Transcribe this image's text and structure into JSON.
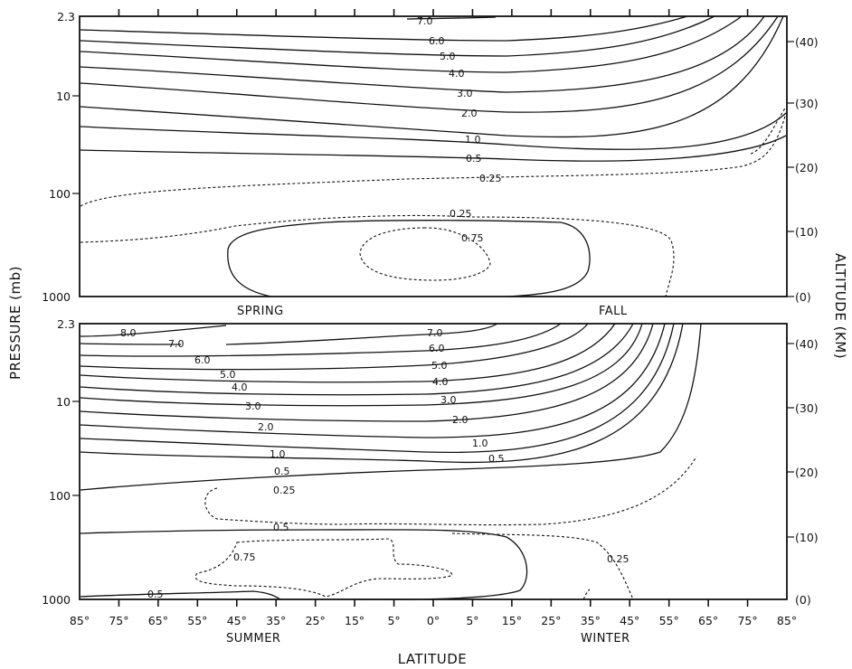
{
  "chart_data": [
    {
      "type": "contour",
      "panel": "upper",
      "season_labels": {
        "left": "SPRING",
        "right": "FALL"
      },
      "pressure_ticks": [
        "2.3",
        "10",
        "100",
        "1000"
      ],
      "altitude_ticks": [
        "(40)",
        "(30)",
        "(20)",
        "(10)",
        "(0)"
      ],
      "contour_levels": [
        {
          "value": "7.0",
          "style": "solid"
        },
        {
          "value": "6.0",
          "style": "solid"
        },
        {
          "value": "5.0",
          "style": "solid"
        },
        {
          "value": "4.0",
          "style": "solid"
        },
        {
          "value": "3.0",
          "style": "solid"
        },
        {
          "value": "2.0",
          "style": "solid"
        },
        {
          "value": "1.0",
          "style": "solid"
        },
        {
          "value": "0.5",
          "style": "solid"
        },
        {
          "value": "0.25",
          "style": "dashed"
        },
        {
          "value": "0.25",
          "style": "dashed"
        },
        {
          "value": "0.75",
          "style": "dashed"
        }
      ]
    },
    {
      "type": "contour",
      "panel": "lower",
      "season_labels": {
        "left": "SUMMER",
        "right": "WINTER"
      },
      "pressure_ticks": [
        "2.3",
        "10",
        "100",
        "1000"
      ],
      "altitude_ticks": [
        "(40)",
        "(30)",
        "(20)",
        "(10)",
        "(0)"
      ],
      "latitude_ticks": [
        "85°",
        "75°",
        "65°",
        "55°",
        "45°",
        "35°",
        "25°",
        "15°",
        "5°",
        "0°",
        "5°",
        "15°",
        "25°",
        "35°",
        "45°",
        "55°",
        "65°",
        "75°",
        "85°"
      ],
      "contour_levels": [
        {
          "value": "8.0",
          "style": "solid"
        },
        {
          "value": "7.0",
          "style": "solid"
        },
        {
          "value": "6.0",
          "style": "solid"
        },
        {
          "value": "5.0",
          "style": "solid"
        },
        {
          "value": "4.0",
          "style": "solid"
        },
        {
          "value": "3.0",
          "style": "solid"
        },
        {
          "value": "2.0",
          "style": "solid"
        },
        {
          "value": "1.0",
          "style": "solid"
        },
        {
          "value": "0.5",
          "style": "dashed"
        },
        {
          "value": "0.25",
          "style": "dashed"
        },
        {
          "value": "0.5",
          "style": "solid"
        },
        {
          "value": "0.75",
          "style": "dashed"
        },
        {
          "value": "0.25",
          "style": "dashed"
        },
        {
          "value": "0.5",
          "style": "solid"
        }
      ]
    }
  ],
  "axes": {
    "y_left_title": "PRESSURE (mb)",
    "y_right_title": "ALTITUDE (KM)",
    "x_title": "LATITUDE"
  }
}
